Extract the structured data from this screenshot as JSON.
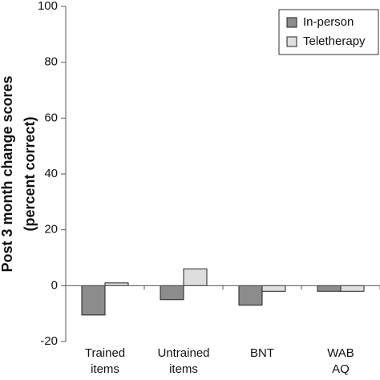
{
  "chart_data": {
    "type": "bar",
    "y_label": [
      "Post 3 month change scores",
      "(percent correct)"
    ],
    "categories": [
      "Trained items",
      "Untrained items",
      "BNT",
      "WAB AQ"
    ],
    "series": [
      {
        "name": "In-person",
        "color": "#8c8c8c",
        "values": [
          -10.5,
          -5,
          -7,
          -2
        ]
      },
      {
        "name": "Teletherapy",
        "color": "#dedede",
        "values": [
          1,
          6,
          -2,
          -2
        ]
      }
    ],
    "ylim": [
      -20,
      100
    ],
    "yticks": [
      -20,
      0,
      20,
      40,
      60,
      80,
      100
    ],
    "grid": false,
    "legend": "upper right"
  }
}
